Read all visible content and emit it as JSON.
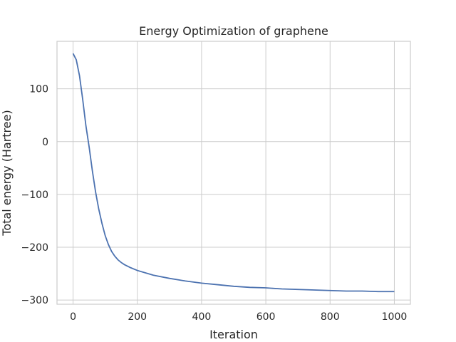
{
  "chart_data": {
    "type": "line",
    "title": "Energy Optimization of graphene",
    "xlabel": "Iteration",
    "ylabel": "Total energy (Hartree)",
    "xlim": [
      -50,
      1050
    ],
    "ylim": [
      -308,
      190
    ],
    "xticks": [
      0,
      200,
      400,
      600,
      800,
      1000
    ],
    "yticks": [
      -300,
      -200,
      -100,
      0,
      100
    ],
    "grid": true,
    "series": [
      {
        "color": "#4c72b0",
        "x": [
          0,
          10,
          20,
          30,
          40,
          50,
          60,
          70,
          80,
          90,
          100,
          110,
          120,
          130,
          140,
          150,
          160,
          170,
          180,
          200,
          250,
          300,
          350,
          400,
          450,
          500,
          550,
          600,
          650,
          700,
          750,
          800,
          850,
          900,
          950,
          1000
        ],
        "y": [
          167,
          155,
          125,
          80,
          30,
          -10,
          -55,
          -95,
          -128,
          -155,
          -178,
          -195,
          -208,
          -217,
          -224,
          -229,
          -233,
          -236,
          -239,
          -244,
          -253,
          -259,
          -264,
          -268,
          -271,
          -274,
          -276,
          -277,
          -279,
          -280,
          -281,
          -282,
          -283,
          -283,
          -284,
          -284
        ]
      }
    ]
  }
}
